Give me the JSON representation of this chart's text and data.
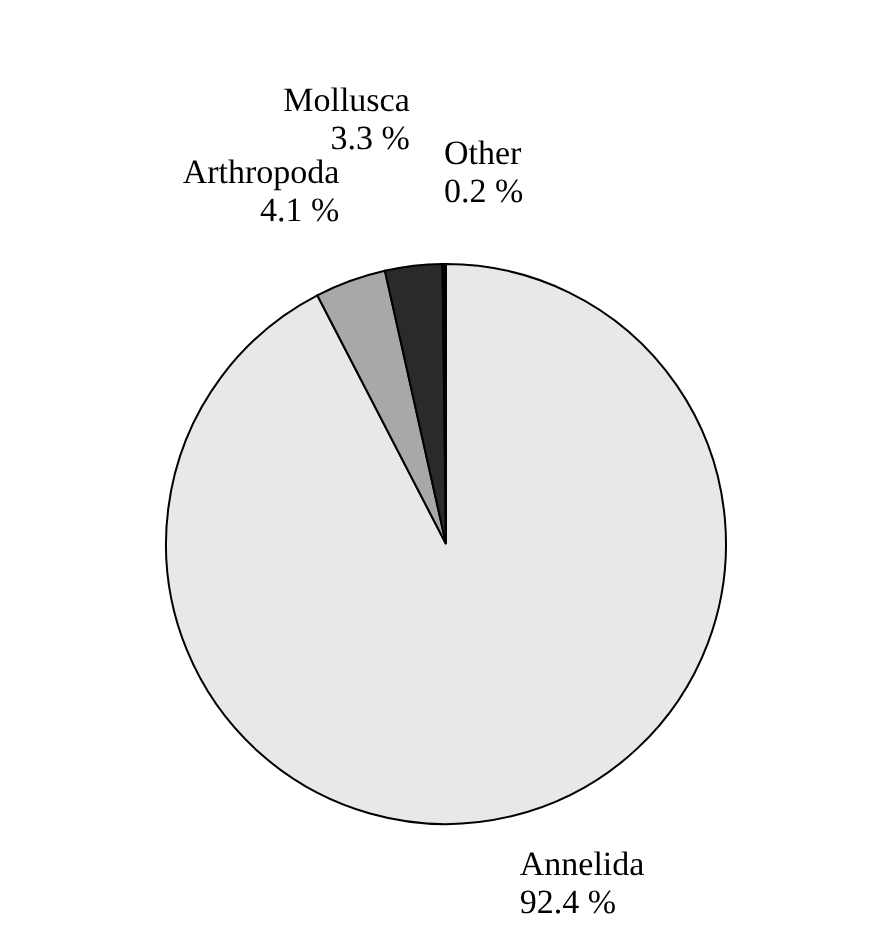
{
  "chart_data": {
    "type": "pie",
    "categories": [
      "Annelida",
      "Arthropoda",
      "Mollusca",
      "Other"
    ],
    "values": [
      92.4,
      4.1,
      3.3,
      0.2
    ],
    "colors": [
      "#e8e8e8",
      "#a8a8a8",
      "#2a2a2a",
      "#000000"
    ],
    "value_labels": [
      "92.4 %",
      "4.1 %",
      "3.3 %",
      "0.2 %"
    ]
  }
}
